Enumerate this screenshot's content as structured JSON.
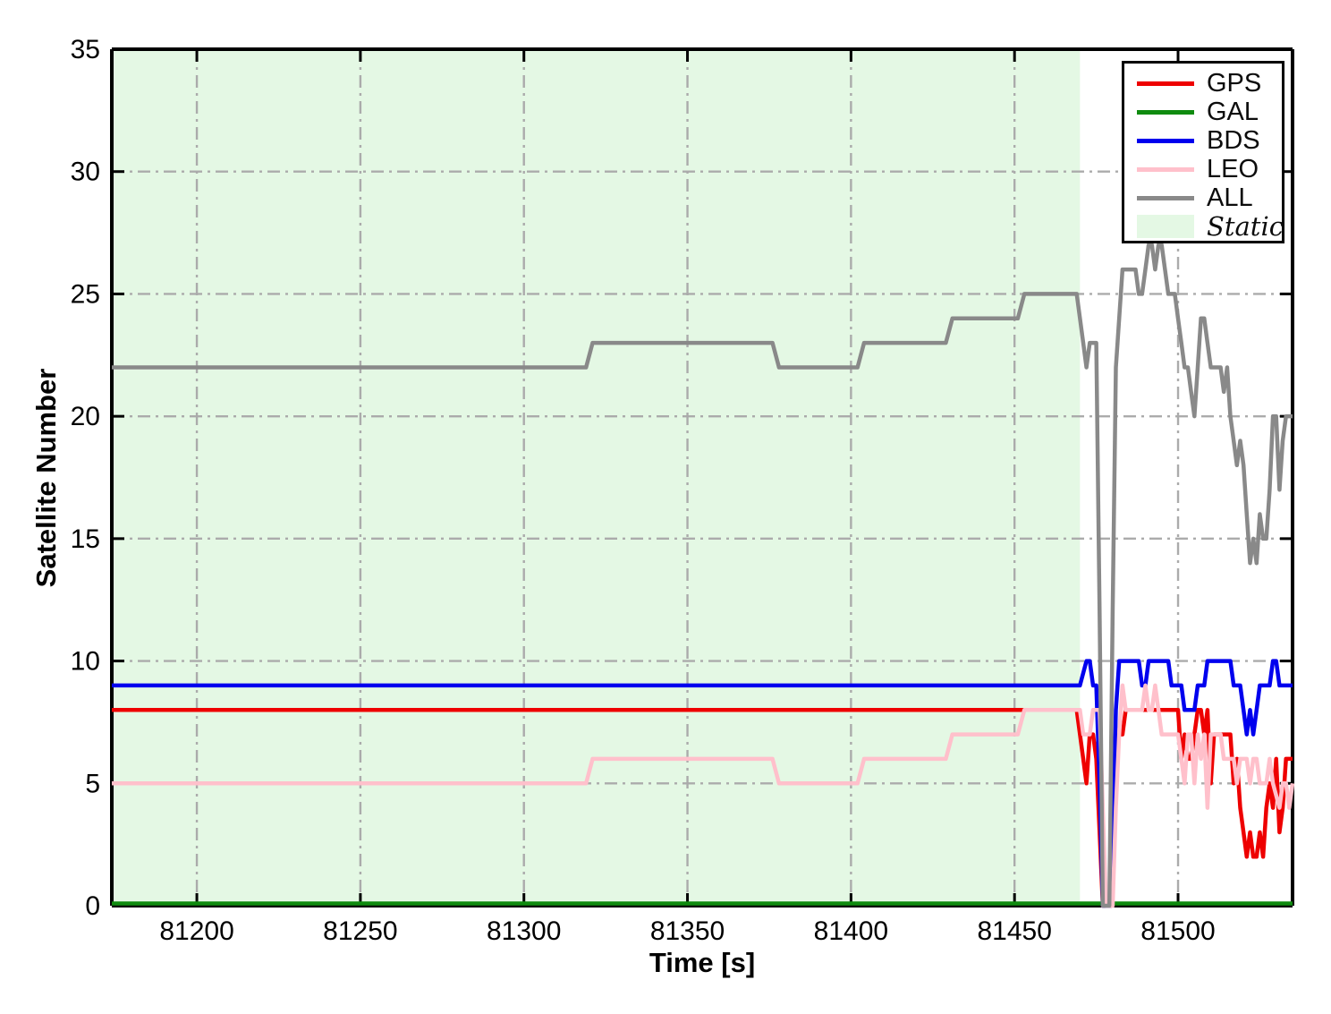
{
  "chart_data": {
    "type": "line",
    "title": "",
    "xlabel": "Time [s]",
    "ylabel": "Satellite Number",
    "xlim": [
      81174,
      81535
    ],
    "ylim": [
      0,
      35
    ],
    "xticks": [
      81200,
      81250,
      81300,
      81350,
      81400,
      81450,
      81500
    ],
    "yticks": [
      0,
      5,
      10,
      15,
      20,
      25,
      30,
      35
    ],
    "grid": {
      "show": true,
      "style": "dash-dot",
      "color": "#ababab"
    },
    "static_region": {
      "label": "Static",
      "x_start": 81174,
      "x_end": 81470,
      "color": "#e4f8e4"
    },
    "legend": {
      "position": "upper right",
      "entries": [
        {
          "label": "GPS",
          "color": "#ee0000",
          "type": "line",
          "italic": false
        },
        {
          "label": "GAL",
          "color": "#0f8b0f",
          "type": "line",
          "italic": false
        },
        {
          "label": "BDS",
          "color": "#0000ee",
          "type": "line",
          "italic": false
        },
        {
          "label": "LEO",
          "color": "#ffc0cb",
          "type": "line",
          "italic": false
        },
        {
          "label": "ALL",
          "color": "#898989",
          "type": "line",
          "italic": false
        },
        {
          "label": "Static",
          "color": "#e4f8e4",
          "type": "patch",
          "italic": true
        }
      ]
    },
    "series": [
      {
        "name": "GPS",
        "color": "#ee0000",
        "points": [
          [
            81174,
            8
          ],
          [
            81469,
            8
          ],
          [
            81471,
            6
          ],
          [
            81472,
            5
          ],
          [
            81473,
            7
          ],
          [
            81474,
            7
          ],
          [
            81475,
            6
          ],
          [
            81476,
            3
          ],
          [
            81477,
            0
          ],
          [
            81479.5,
            0
          ],
          [
            81481,
            6
          ],
          [
            81482,
            7
          ],
          [
            81483,
            7
          ],
          [
            81484,
            8
          ],
          [
            81500,
            8
          ],
          [
            81501,
            6
          ],
          [
            81502,
            7
          ],
          [
            81503,
            6
          ],
          [
            81504,
            6
          ],
          [
            81505,
            7
          ],
          [
            81506,
            8
          ],
          [
            81507,
            8
          ],
          [
            81508,
            7
          ],
          [
            81509,
            8
          ],
          [
            81510,
            5
          ],
          [
            81511,
            7
          ],
          [
            81513,
            7
          ],
          [
            81516,
            7
          ],
          [
            81517,
            5
          ],
          [
            81518,
            6
          ],
          [
            81519,
            4
          ],
          [
            81520,
            3
          ],
          [
            81521,
            2
          ],
          [
            81522,
            3
          ],
          [
            81523,
            2
          ],
          [
            81524,
            2
          ],
          [
            81525,
            3
          ],
          [
            81526,
            2
          ],
          [
            81527,
            4
          ],
          [
            81528,
            5
          ],
          [
            81529,
            4
          ],
          [
            81530,
            6
          ],
          [
            81531,
            3
          ],
          [
            81532,
            4
          ],
          [
            81533,
            6
          ],
          [
            81535,
            6
          ]
        ]
      },
      {
        "name": "GAL",
        "color": "#0f8b0f",
        "points": [
          [
            81174,
            0
          ],
          [
            81535,
            0
          ]
        ]
      },
      {
        "name": "BDS",
        "color": "#0000ee",
        "points": [
          [
            81174,
            9
          ],
          [
            81470,
            9
          ],
          [
            81472,
            10
          ],
          [
            81473,
            10
          ],
          [
            81474,
            9
          ],
          [
            81475,
            9
          ],
          [
            81476,
            5
          ],
          [
            81477,
            0
          ],
          [
            81479.5,
            0
          ],
          [
            81481,
            8
          ],
          [
            81482,
            10
          ],
          [
            81488,
            10
          ],
          [
            81489,
            9
          ],
          [
            81490,
            9
          ],
          [
            81491,
            10
          ],
          [
            81497,
            10
          ],
          [
            81498,
            9
          ],
          [
            81501,
            9
          ],
          [
            81502,
            8
          ],
          [
            81504,
            8
          ],
          [
            81505,
            8
          ],
          [
            81506,
            9
          ],
          [
            81508,
            9
          ],
          [
            81509,
            10
          ],
          [
            81516,
            10
          ],
          [
            81517,
            9
          ],
          [
            81519,
            9
          ],
          [
            81520,
            8
          ],
          [
            81521,
            7
          ],
          [
            81522,
            8
          ],
          [
            81523,
            7
          ],
          [
            81524,
            8
          ],
          [
            81525,
            9
          ],
          [
            81528,
            9
          ],
          [
            81529,
            10
          ],
          [
            81530,
            10
          ],
          [
            81531,
            9
          ],
          [
            81535,
            9
          ]
        ]
      },
      {
        "name": "LEO",
        "color": "#ffc0cb",
        "points": [
          [
            81174,
            5
          ],
          [
            81319,
            5
          ],
          [
            81321,
            6
          ],
          [
            81376,
            6
          ],
          [
            81378,
            5
          ],
          [
            81402,
            5
          ],
          [
            81404,
            6
          ],
          [
            81429,
            6
          ],
          [
            81431,
            7
          ],
          [
            81451,
            7
          ],
          [
            81453,
            8
          ],
          [
            81470,
            8
          ],
          [
            81471,
            7
          ],
          [
            81473,
            7
          ],
          [
            81474,
            8
          ],
          [
            81476,
            8
          ],
          [
            81477,
            4
          ],
          [
            81478,
            0
          ],
          [
            81480,
            0
          ],
          [
            81481,
            4
          ],
          [
            81482,
            7
          ],
          [
            81483,
            9
          ],
          [
            81484,
            8
          ],
          [
            81488,
            8
          ],
          [
            81489,
            8
          ],
          [
            81490,
            9
          ],
          [
            81491,
            8
          ],
          [
            81492,
            8
          ],
          [
            81493,
            9
          ],
          [
            81494,
            8
          ],
          [
            81495,
            7
          ],
          [
            81499,
            7
          ],
          [
            81500,
            7
          ],
          [
            81501,
            6
          ],
          [
            81502,
            5
          ],
          [
            81503,
            7
          ],
          [
            81504,
            7
          ],
          [
            81505,
            5
          ],
          [
            81506,
            7
          ],
          [
            81507,
            6
          ],
          [
            81508,
            7
          ],
          [
            81509,
            4
          ],
          [
            81510,
            7
          ],
          [
            81513,
            7
          ],
          [
            81514,
            6
          ],
          [
            81517,
            6
          ],
          [
            81518,
            5
          ],
          [
            81519,
            6
          ],
          [
            81521,
            6
          ],
          [
            81522,
            5
          ],
          [
            81523,
            6
          ],
          [
            81524,
            6
          ],
          [
            81525,
            5
          ],
          [
            81527,
            5
          ],
          [
            81528,
            6
          ],
          [
            81529,
            5
          ],
          [
            81531,
            4
          ],
          [
            81532,
            5
          ],
          [
            81533,
            5
          ],
          [
            81534,
            4
          ],
          [
            81535,
            5
          ]
        ]
      },
      {
        "name": "ALL",
        "color": "#898989",
        "points": [
          [
            81174,
            22
          ],
          [
            81319,
            22
          ],
          [
            81321,
            23
          ],
          [
            81376,
            23
          ],
          [
            81378,
            22
          ],
          [
            81402,
            22
          ],
          [
            81404,
            23
          ],
          [
            81429,
            23
          ],
          [
            81431,
            24
          ],
          [
            81451,
            24
          ],
          [
            81453,
            25
          ],
          [
            81469,
            25
          ],
          [
            81471,
            23
          ],
          [
            81472,
            22
          ],
          [
            81473,
            23
          ],
          [
            81475,
            23
          ],
          [
            81476,
            12
          ],
          [
            81477,
            0
          ],
          [
            81479,
            0
          ],
          [
            81480,
            12
          ],
          [
            81481,
            22
          ],
          [
            81482,
            24
          ],
          [
            81483,
            26
          ],
          [
            81487,
            26
          ],
          [
            81488,
            25
          ],
          [
            81489,
            25
          ],
          [
            81490,
            26
          ],
          [
            81491,
            27
          ],
          [
            81492,
            27
          ],
          [
            81493,
            26
          ],
          [
            81494,
            27
          ],
          [
            81495,
            27
          ],
          [
            81496,
            26
          ],
          [
            81497,
            25
          ],
          [
            81499,
            25
          ],
          [
            81500,
            24
          ],
          [
            81501,
            23
          ],
          [
            81502,
            22
          ],
          [
            81503,
            22
          ],
          [
            81504,
            21
          ],
          [
            81505,
            20
          ],
          [
            81506,
            22
          ],
          [
            81507,
            24
          ],
          [
            81508,
            24
          ],
          [
            81509,
            23
          ],
          [
            81510,
            22
          ],
          [
            81512,
            22
          ],
          [
            81513,
            22
          ],
          [
            81514,
            21
          ],
          [
            81515,
            22
          ],
          [
            81516,
            20
          ],
          [
            81517,
            19
          ],
          [
            81518,
            18
          ],
          [
            81519,
            19
          ],
          [
            81520,
            18
          ],
          [
            81521,
            16
          ],
          [
            81522,
            14
          ],
          [
            81523,
            15
          ],
          [
            81524,
            14
          ],
          [
            81525,
            16
          ],
          [
            81526,
            15
          ],
          [
            81527,
            15
          ],
          [
            81528,
            17
          ],
          [
            81529,
            20
          ],
          [
            81530,
            20
          ],
          [
            81531,
            17
          ],
          [
            81532,
            19
          ],
          [
            81533,
            20
          ],
          [
            81535,
            20
          ]
        ]
      }
    ]
  }
}
